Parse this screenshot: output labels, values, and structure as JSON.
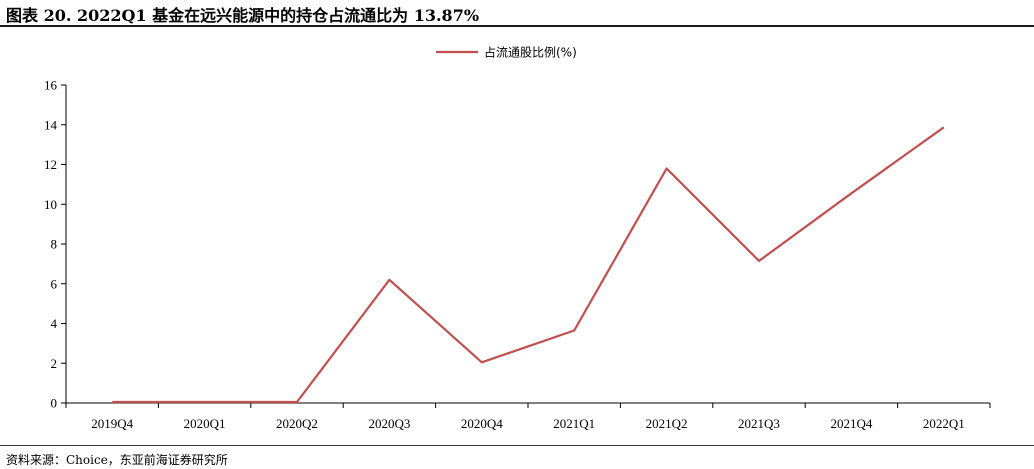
{
  "title": "图表 20. 2022Q1 基金在远兴能源中的持仓占流通比为 13.87%",
  "source": "资料来源：Choice，东亚前海证券研究所",
  "chart_data": {
    "type": "line",
    "categories": [
      "2019Q4",
      "2020Q1",
      "2020Q2",
      "2020Q3",
      "2020Q4",
      "2021Q1",
      "2021Q2",
      "2021Q3",
      "2021Q4",
      "2022Q1"
    ],
    "series": [
      {
        "name": "占流通股比例(%)",
        "values": [
          0.05,
          0.05,
          0.05,
          6.2,
          2.05,
          3.65,
          11.8,
          7.15,
          10.55,
          13.87
        ],
        "color": "#c0504d"
      }
    ],
    "ylim": [
      0,
      16
    ],
    "yticks": [
      0,
      2,
      4,
      6,
      8,
      10,
      12,
      14,
      16
    ],
    "grid": false,
    "legend": "top-center"
  }
}
